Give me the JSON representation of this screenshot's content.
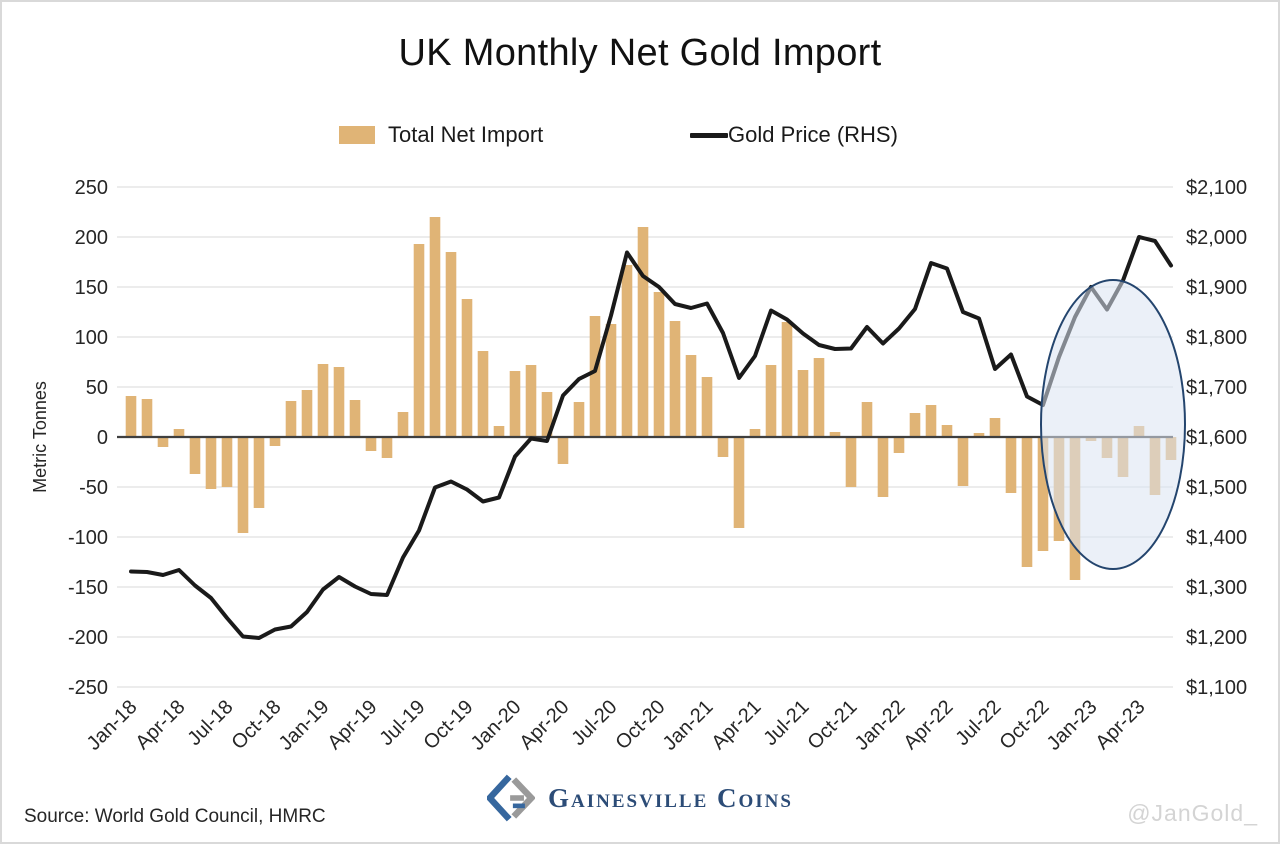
{
  "title": "UK Monthly Net Gold Import",
  "legend": {
    "bars_label": "Total Net Import",
    "line_label": "Gold Price (RHS)"
  },
  "chart_data": {
    "type": "bar",
    "subtype": "bar+line dual axis",
    "x": [
      "Jan-18",
      "Feb-18",
      "Mar-18",
      "Apr-18",
      "May-18",
      "Jun-18",
      "Jul-18",
      "Aug-18",
      "Sep-18",
      "Oct-18",
      "Nov-18",
      "Dec-18",
      "Jan-19",
      "Feb-19",
      "Mar-19",
      "Apr-19",
      "May-19",
      "Jun-19",
      "Jul-19",
      "Aug-19",
      "Sep-19",
      "Oct-19",
      "Nov-19",
      "Dec-19",
      "Jan-20",
      "Feb-20",
      "Mar-20",
      "Apr-20",
      "May-20",
      "Jun-20",
      "Jul-20",
      "Aug-20",
      "Sep-20",
      "Oct-20",
      "Nov-20",
      "Dec-20",
      "Jan-21",
      "Feb-21",
      "Mar-21",
      "Apr-21",
      "May-21",
      "Jun-21",
      "Jul-21",
      "Aug-21",
      "Sep-21",
      "Oct-21",
      "Nov-21",
      "Dec-21",
      "Jan-22",
      "Feb-22",
      "Mar-22",
      "Apr-22",
      "May-22",
      "Jun-22",
      "Jul-22",
      "Aug-22",
      "Sep-22",
      "Oct-22",
      "Nov-22",
      "Dec-22",
      "Jan-23",
      "Feb-23",
      "Mar-23",
      "Apr-23",
      "May-23",
      "Jun-23"
    ],
    "x_tick_every": 3,
    "series": [
      {
        "name": "Total Net Import",
        "type": "bar",
        "axis": "left",
        "unit": "Metric Tonnes",
        "color": "#e0b476",
        "values": [
          41,
          38,
          -10,
          8,
          -37,
          -52,
          -50,
          -96,
          -71,
          -9,
          36,
          47,
          73,
          70,
          37,
          -14,
          -21,
          25,
          193,
          220,
          185,
          138,
          86,
          11,
          66,
          72,
          45,
          -27,
          35,
          121,
          113,
          172,
          210,
          145,
          116,
          82,
          60,
          -20,
          -91,
          8,
          72,
          115,
          67,
          79,
          5,
          -50,
          35,
          -60,
          -16,
          24,
          32,
          12,
          -49,
          4,
          19,
          -56,
          -130,
          -114,
          -104,
          -143,
          -4,
          -21,
          -40,
          11,
          -58,
          -23
        ]
      },
      {
        "name": "Gold Price (RHS)",
        "type": "line",
        "axis": "right",
        "unit": "USD per ounce",
        "color": "#1a1a1a",
        "values": [
          1331,
          1330,
          1324,
          1334,
          1303,
          1278,
          1238,
          1201,
          1198,
          1215,
          1221,
          1250,
          1295,
          1320,
          1301,
          1286,
          1284,
          1359,
          1413,
          1499,
          1511,
          1495,
          1471,
          1479,
          1561,
          1597,
          1592,
          1683,
          1716,
          1732,
          1843,
          1969,
          1922,
          1900,
          1866,
          1858,
          1867,
          1808,
          1718,
          1762,
          1853,
          1835,
          1807,
          1784,
          1776,
          1777,
          1820,
          1787,
          1817,
          1856,
          1948,
          1937,
          1850,
          1837,
          1736,
          1765,
          1681,
          1664,
          1760,
          1840,
          1900,
          1855,
          1913,
          2000,
          1992,
          1943
        ]
      }
    ],
    "left_axis": {
      "title": "Metric Tonnes",
      "min": -250,
      "max": 250,
      "step": 50,
      "ticks": [
        250,
        200,
        150,
        100,
        50,
        0,
        -50,
        -100,
        -150,
        -200,
        -250
      ]
    },
    "right_axis": {
      "min": 1100,
      "max": 2100,
      "step": 100,
      "prefix": "$",
      "ticks": [
        2100,
        2000,
        1900,
        1800,
        1700,
        1600,
        1500,
        1400,
        1300,
        1200,
        1100
      ]
    },
    "grid": "horizontal",
    "grid_color": "#d9d9d9",
    "zero_line_color": "#3f3f3f",
    "legend_position": "top",
    "highlight_ellipse": {
      "x_from_month": "Oct-22",
      "x_to_month": "Jun-23",
      "top_tonnes": 157,
      "bottom_tonnes": -132,
      "stroke": "#24456e",
      "fill": "#dae3f3",
      "fill_opacity": 0.55
    }
  },
  "footer": {
    "source": "Source: World Gold Council, HMRC",
    "brand": "Gainesville Coins",
    "handle": "@JanGold_"
  }
}
